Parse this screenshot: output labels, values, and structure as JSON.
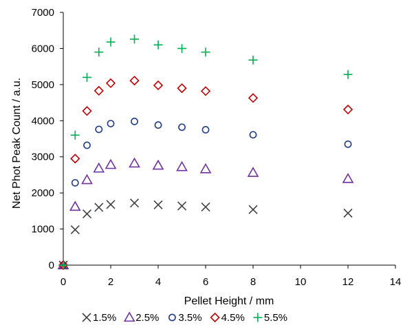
{
  "chart_data": {
    "type": "scatter",
    "title": "",
    "xlabel": "Pellet Height / mm",
    "ylabel": "Net Phot Peak Count / a.u.",
    "xlim": [
      0,
      14
    ],
    "ylim": [
      0,
      7000
    ],
    "x_ticks": [
      0,
      2,
      4,
      6,
      8,
      10,
      12,
      14
    ],
    "y_ticks": [
      0,
      1000,
      2000,
      3000,
      4000,
      5000,
      6000,
      7000
    ],
    "grid": false,
    "legend_position": "bottom",
    "x": [
      0,
      0.5,
      1,
      1.5,
      2,
      3,
      4,
      5,
      6,
      8,
      12
    ],
    "series": [
      {
        "name": "1.5%",
        "marker": "x",
        "color": "#404040",
        "values": [
          0,
          980,
          1420,
          1600,
          1680,
          1720,
          1670,
          1640,
          1610,
          1540,
          1440
        ]
      },
      {
        "name": "2.5%",
        "marker": "triangle",
        "color": "#7030A0",
        "values": [
          0,
          1620,
          2360,
          2680,
          2780,
          2820,
          2760,
          2720,
          2660,
          2560,
          2390
        ]
      },
      {
        "name": "3.5%",
        "marker": "circle",
        "color": "#1F3C88",
        "values": [
          0,
          2280,
          3320,
          3760,
          3920,
          3980,
          3880,
          3820,
          3750,
          3610,
          3350
        ]
      },
      {
        "name": "4.5%",
        "marker": "diamond",
        "color": "#C00000",
        "values": [
          0,
          2950,
          4270,
          4830,
          5040,
          5110,
          4980,
          4900,
          4820,
          4630,
          4310
        ]
      },
      {
        "name": "5.5%",
        "marker": "plus",
        "color": "#00B050",
        "values": [
          0,
          3600,
          5200,
          5900,
          6180,
          6260,
          6100,
          6000,
          5900,
          5680,
          5280
        ]
      }
    ]
  }
}
